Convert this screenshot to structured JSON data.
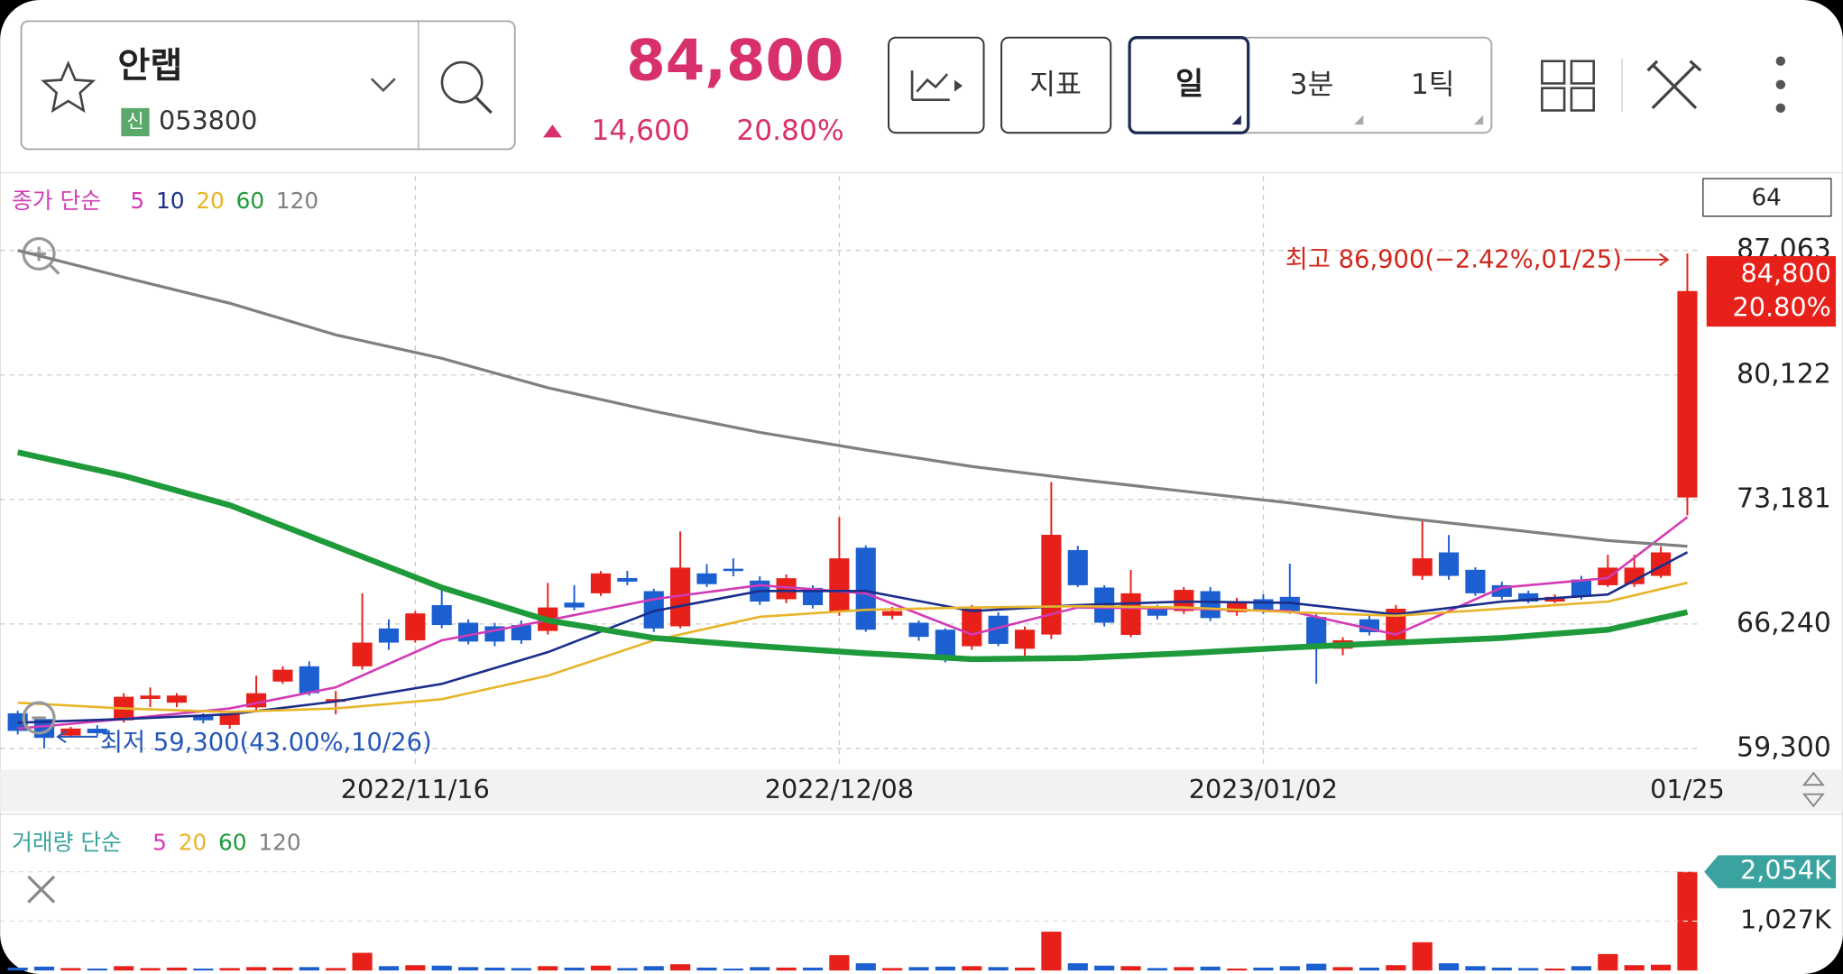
{
  "header": {
    "name": "안랩",
    "badge": "신",
    "code": "053800",
    "price": "84,800",
    "change": "14,600",
    "change_pct": "20.80%"
  },
  "toolbar": {
    "buttons": [
      "지표",
      "일",
      "3분",
      "1틱"
    ]
  },
  "chart_data": {
    "type": "candlestick",
    "legend_label": "종가 단순",
    "count": "64",
    "up_color": "#e8201a",
    "down_color": "#1c5fd0",
    "categories": [
      null,
      null,
      null,
      null,
      null,
      null,
      null,
      null,
      null,
      null,
      null,
      null,
      null,
      null,
      null,
      "2022/11/16",
      null,
      null,
      null,
      null,
      null,
      null,
      null,
      null,
      null,
      null,
      null,
      null,
      null,
      null,
      null,
      "2022/12/08",
      null,
      null,
      null,
      null,
      null,
      null,
      null,
      null,
      null,
      null,
      null,
      null,
      null,
      null,
      null,
      "2023/01/02",
      null,
      null,
      null,
      null,
      null,
      null,
      null,
      null,
      null,
      null,
      null,
      null,
      null,
      null,
      null,
      "01/25"
    ],
    "open": [
      61260,
      60940,
      60020,
      60400,
      60870,
      62060,
      61850,
      61100,
      60610,
      61590,
      63030,
      63880,
      61900,
      63880,
      65990,
      65330,
      67290,
      66310,
      66110,
      66180,
      65850,
      67430,
      67950,
      68800,
      68070,
      66110,
      69060,
      69320,
      68660,
      67620,
      68250,
      66940,
      70490,
      66700,
      66310,
      65920,
      65000,
      66700,
      64860,
      65650,
      70360,
      68270,
      65630,
      67160,
      66960,
      68070,
      66900,
      67620,
      67750,
      66630,
      64860,
      66500,
      65330,
      68920,
      70230,
      69260,
      68400,
      67950,
      67490,
      68720,
      68400,
      68460,
      68920,
      73290
    ],
    "high": [
      61400,
      61000,
      60500,
      60600,
      62380,
      62700,
      62380,
      61260,
      61400,
      63360,
      63880,
      64150,
      62500,
      67950,
      66500,
      66960,
      68400,
      66500,
      66300,
      66440,
      68530,
      68400,
      69190,
      69200,
      68200,
      71400,
      69580,
      69900,
      68900,
      69000,
      68400,
      72200,
      70620,
      67200,
      66440,
      66000,
      67300,
      66900,
      66100,
      74150,
      70600,
      68400,
      69250,
      67300,
      68300,
      68300,
      67700,
      67900,
      69600,
      66800,
      65500,
      66700,
      67300,
      71990,
      71200,
      69400,
      68600,
      68100,
      67900,
      68920,
      70100,
      70100,
      70560,
      86900
    ],
    "low": [
      60080,
      59300,
      59900,
      60000,
      60740,
      61600,
      61600,
      60700,
      60400,
      61400,
      62900,
      62250,
      61200,
      63690,
      64800,
      65200,
      66000,
      65100,
      65000,
      65130,
      65650,
      67000,
      67800,
      68400,
      65800,
      65990,
      68300,
      68900,
      67300,
      67400,
      67100,
      66700,
      65800,
      66500,
      65300,
      64100,
      64800,
      65000,
      64300,
      65400,
      68300,
      66100,
      65500,
      66500,
      66800,
      66400,
      66700,
      66800,
      66800,
      62900,
      64500,
      65600,
      65200,
      68700,
      68700,
      67800,
      67600,
      67400,
      67400,
      67600,
      68300,
      68300,
      68800,
      72300
    ],
    "close": [
      60280,
      59890,
      60410,
      60150,
      62180,
      62250,
      62250,
      60870,
      61260,
      62380,
      63690,
      62380,
      62050,
      65200,
      65200,
      66830,
      66180,
      65260,
      65260,
      65330,
      67160,
      67160,
      69060,
      68600,
      65990,
      69380,
      68460,
      69190,
      67490,
      68790,
      67290,
      69900,
      65920,
      66960,
      65520,
      64280,
      67090,
      65130,
      65920,
      71210,
      68400,
      66310,
      67950,
      66700,
      68140,
      66570,
      67490,
      66960,
      66960,
      65000,
      65330,
      65780,
      67090,
      69900,
      68920,
      67950,
      67750,
      67490,
      67750,
      67750,
      69380,
      69380,
      70230,
      84800
    ],
    "ylim": [
      58320,
      91200
    ],
    "yticks": [
      {
        "value": 59300,
        "label": "59,300"
      },
      {
        "value": 66240,
        "label": "66,240"
      },
      {
        "value": 73181,
        "label": "73,181"
      },
      {
        "value": 80122,
        "label": "80,122"
      },
      {
        "value": 87063,
        "label": "87,063"
      }
    ],
    "series": [
      {
        "name": "5",
        "color": "#d23bb5",
        "x": [
          0,
          4,
          8,
          12,
          16,
          20,
          24,
          28,
          32,
          36,
          40,
          44,
          48,
          52,
          56,
          60,
          63
        ],
        "values": [
          60410,
          60940,
          61530,
          62710,
          65330,
          66440,
          67620,
          68400,
          67950,
          65650,
          67160,
          67090,
          66960,
          65650,
          68270,
          68800,
          72200
        ]
      },
      {
        "name": "10",
        "color": "#1a2e8c",
        "x": [
          0,
          4,
          8,
          12,
          16,
          20,
          24,
          28,
          32,
          36,
          40,
          44,
          48,
          52,
          56,
          60,
          63
        ],
        "values": [
          60740,
          60940,
          61200,
          61920,
          62900,
          64670,
          66960,
          68080,
          68080,
          66960,
          67290,
          67490,
          67420,
          66770,
          67490,
          67880,
          70240
        ]
      },
      {
        "name": "20",
        "color": "#e8b52a",
        "x": [
          0,
          4,
          8,
          12,
          16,
          20,
          24,
          28,
          32,
          36,
          40,
          44,
          48,
          52,
          56,
          60,
          63
        ],
        "values": [
          61850,
          61530,
          61330,
          61530,
          62050,
          63360,
          65330,
          66640,
          67030,
          67160,
          67230,
          67160,
          66900,
          66700,
          67090,
          67490,
          68540
        ]
      },
      {
        "name": "60",
        "color": "#1f9a3a",
        "x": [
          0,
          4,
          8,
          12,
          16,
          20,
          24,
          28,
          32,
          36,
          40,
          44,
          48,
          52,
          56,
          60,
          63
        ],
        "values": [
          75810,
          74500,
          72860,
          70570,
          68270,
          66440,
          65460,
          65000,
          64610,
          64280,
          64340,
          64610,
          64930,
          65200,
          65460,
          65920,
          66900
        ]
      },
      {
        "name": "120",
        "color": "#808080",
        "x": [
          0,
          4,
          8,
          12,
          16,
          20,
          24,
          28,
          32,
          36,
          40,
          44,
          48,
          52,
          56,
          60,
          63
        ],
        "values": [
          87070,
          85570,
          84120,
          82360,
          81050,
          79410,
          78100,
          76920,
          75940,
          75020,
          74300,
          73640,
          72990,
          72200,
          71550,
          70890,
          70570
        ]
      }
    ],
    "annotations": [
      {
        "text": "최고 86,900(−2.42%,01/25)"
      },
      {
        "text": "최저 59,300(43.00%,10/26)"
      }
    ],
    "last_price": "84,800",
    "last_pct": "20.80%",
    "volume": {
      "label": "거래량 단순",
      "legend": [
        {
          "name": "5",
          "color": "#d23bb5"
        },
        {
          "name": "20",
          "color": "#e8b52a"
        },
        {
          "name": "60",
          "color": "#1f9a3a"
        },
        {
          "name": "120",
          "color": "#808080"
        }
      ],
      "values": [
        60,
        80,
        50,
        40,
        90,
        50,
        60,
        40,
        50,
        70,
        60,
        70,
        50,
        367,
        90,
        110,
        100,
        70,
        60,
        50,
        90,
        60,
        100,
        50,
        90,
        130,
        60,
        40,
        70,
        60,
        60,
        318,
        150,
        50,
        70,
        80,
        90,
        70,
        60,
        807,
        150,
        100,
        90,
        50,
        70,
        80,
        40,
        60,
        90,
        140,
        70,
        60,
        110,
        587,
        150,
        90,
        60,
        50,
        40,
        90,
        342,
        110,
        120,
        2054
      ],
      "ylim": [
        0,
        3080
      ],
      "yticks": [
        {
          "value": 1027,
          "label": "1,027K"
        },
        {
          "value": 2054,
          "label": "2,054K"
        }
      ]
    }
  }
}
